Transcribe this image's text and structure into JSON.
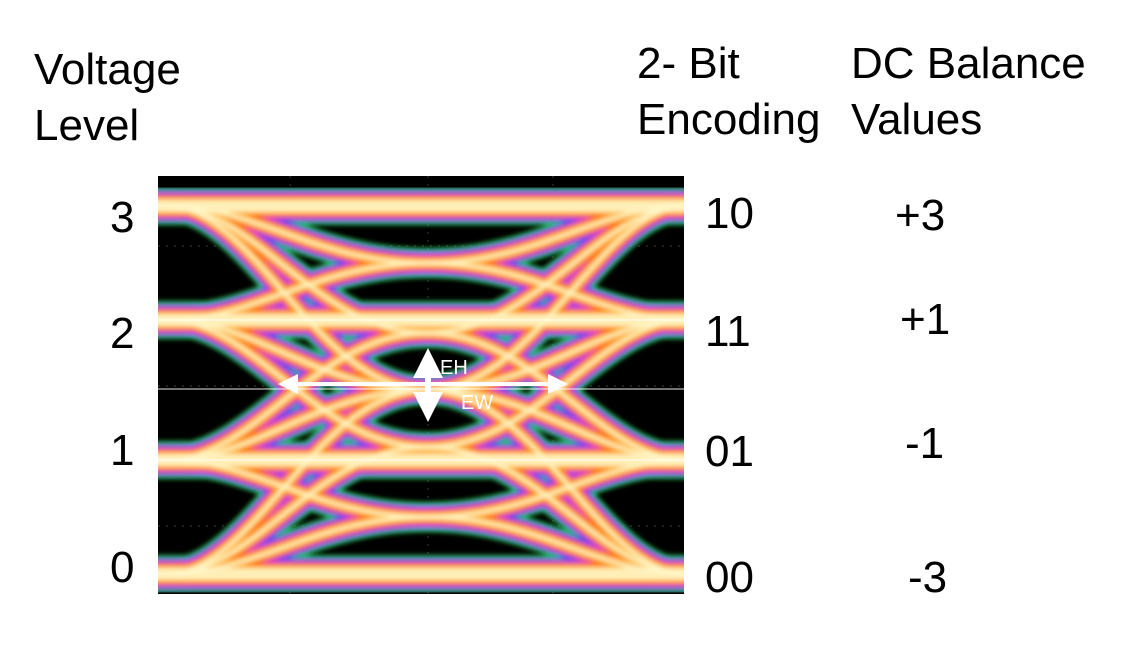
{
  "headers": {
    "voltage_level": [
      "Voltage",
      "Level"
    ],
    "encoding": [
      "2- Bit",
      "Encoding"
    ],
    "dc_balance": [
      "DC Balance",
      "Values"
    ]
  },
  "rows": [
    {
      "voltage": "3",
      "code": "10",
      "dc": "+3"
    },
    {
      "voltage": "2",
      "code": "11",
      "dc": "+1"
    },
    {
      "voltage": "1",
      "code": "01",
      "dc": "-1"
    },
    {
      "voltage": "0",
      "code": "00",
      "dc": "-3"
    }
  ],
  "annotations": {
    "eye_height": "EH",
    "eye_width": "EW"
  },
  "colors": {
    "background": "#000000",
    "hot_core": "#fff6c8",
    "warm": "#ffb020",
    "orange": "#ff6a10",
    "magenta": "#e23ad0",
    "blue": "#2848ff",
    "green": "#2ecc3a",
    "arrow": "#ffffff"
  }
}
